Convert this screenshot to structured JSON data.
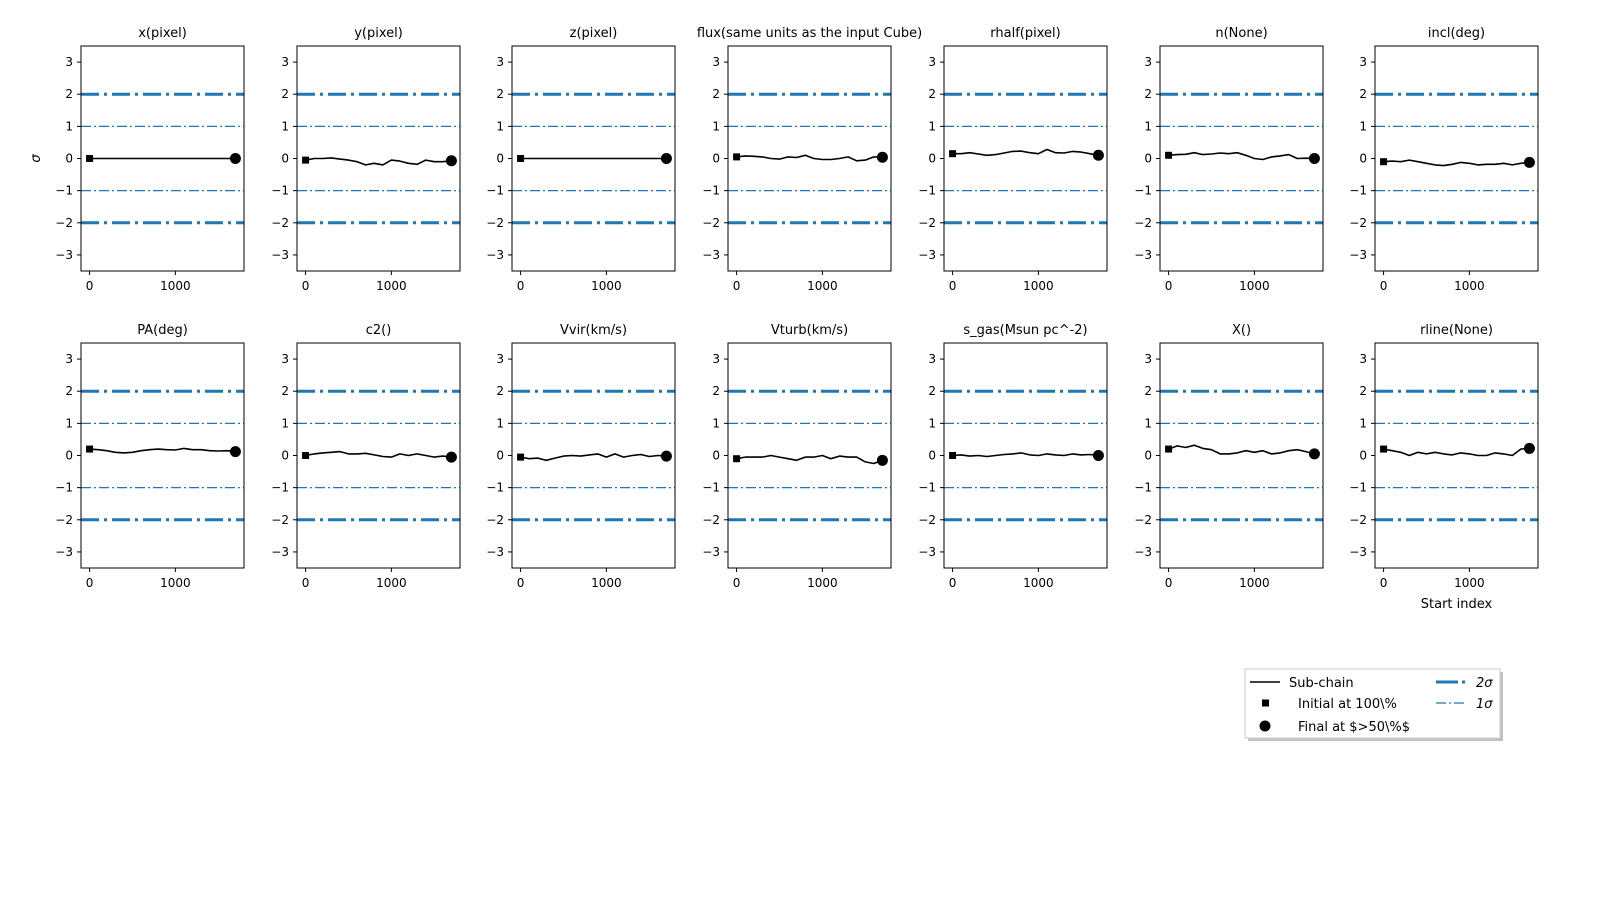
{
  "chart_data": {
    "type": "line",
    "ylabel": "σ",
    "xlabel": "Start index",
    "xlim": [
      -100,
      1800
    ],
    "ylim": [
      -3.5,
      3.5
    ],
    "xticks": [
      0,
      1000
    ],
    "xtick_labels": [
      "0",
      "1000"
    ],
    "yticks": [
      -3,
      -2,
      -1,
      0,
      1,
      2,
      3
    ],
    "ytick_labels": [
      "−3",
      "−2",
      "−1",
      "0",
      "1",
      "2",
      "3"
    ],
    "grid": false,
    "legend_position": "lower-right",
    "reference_lines": [
      {
        "y": 2,
        "label": "2σ",
        "style": "thick dash-dot"
      },
      {
        "y": -2,
        "label": "2σ",
        "style": "thick dash-dot"
      },
      {
        "y": 1,
        "label": "1σ",
        "style": "thin dash-dot"
      },
      {
        "y": -1,
        "label": "1σ",
        "style": "thin dash-dot"
      }
    ],
    "colors": {
      "chain": "#000000",
      "sigma": "#1f77b4"
    },
    "legend": [
      {
        "label": "Sub-chain",
        "marker": "line"
      },
      {
        "label": "Initial at 100\\%",
        "marker": "square"
      },
      {
        "label": "Final at $>50\\%$",
        "marker": "circle"
      },
      {
        "label": "2σ",
        "marker": "thick-dashdot"
      },
      {
        "label": "1σ",
        "marker": "thin-dashdot"
      }
    ],
    "panels": [
      {
        "title": "x(pixel)",
        "x": [
          0,
          1700
        ],
        "y": [
          0,
          0
        ],
        "initial": 0,
        "final": 0
      },
      {
        "title": "y(pixel)",
        "x": [
          0,
          100,
          200,
          300,
          400,
          500,
          600,
          700,
          800,
          900,
          1000,
          1100,
          1200,
          1300,
          1400,
          1500,
          1600,
          1700
        ],
        "y": [
          -0.05,
          0.0,
          0.0,
          0.02,
          -0.02,
          -0.05,
          -0.1,
          -0.2,
          -0.15,
          -0.2,
          -0.05,
          -0.08,
          -0.15,
          -0.18,
          -0.05,
          -0.1,
          -0.1,
          -0.07
        ],
        "initial": -0.05,
        "final": -0.07
      },
      {
        "title": "z(pixel)",
        "x": [
          0,
          1700
        ],
        "y": [
          0,
          0
        ],
        "initial": 0,
        "final": 0
      },
      {
        "title": "flux(same units as the input Cube)",
        "x": [
          0,
          100,
          200,
          300,
          400,
          500,
          600,
          700,
          800,
          900,
          1000,
          1100,
          1200,
          1300,
          1400,
          1500,
          1600,
          1700
        ],
        "y": [
          0.05,
          0.08,
          0.07,
          0.05,
          0.0,
          -0.02,
          0.05,
          0.03,
          0.1,
          0.0,
          -0.03,
          -0.03,
          0.0,
          0.05,
          -0.07,
          -0.05,
          0.05,
          0.04
        ],
        "initial": 0.05,
        "final": 0.04
      },
      {
        "title": "rhalf(pixel)",
        "x": [
          0,
          100,
          200,
          300,
          400,
          500,
          600,
          700,
          800,
          900,
          1000,
          1100,
          1200,
          1300,
          1400,
          1500,
          1600,
          1700
        ],
        "y": [
          0.15,
          0.15,
          0.18,
          0.14,
          0.1,
          0.12,
          0.17,
          0.22,
          0.23,
          0.18,
          0.15,
          0.28,
          0.18,
          0.17,
          0.22,
          0.2,
          0.15,
          0.1
        ],
        "initial": 0.15,
        "final": 0.1
      },
      {
        "title": "n(None)",
        "x": [
          0,
          100,
          200,
          300,
          400,
          500,
          600,
          700,
          800,
          900,
          1000,
          1100,
          1200,
          1300,
          1400,
          1500,
          1600,
          1700
        ],
        "y": [
          0.1,
          0.12,
          0.13,
          0.18,
          0.12,
          0.14,
          0.17,
          0.15,
          0.18,
          0.1,
          0.0,
          -0.03,
          0.05,
          0.08,
          0.12,
          0.0,
          0.01,
          0.0
        ],
        "initial": 0.1,
        "final": 0.0
      },
      {
        "title": "incl(deg)",
        "x": [
          0,
          100,
          200,
          300,
          400,
          500,
          600,
          700,
          800,
          900,
          1000,
          1100,
          1200,
          1300,
          1400,
          1500,
          1600,
          1700
        ],
        "y": [
          -0.1,
          -0.08,
          -0.1,
          -0.05,
          -0.1,
          -0.15,
          -0.2,
          -0.22,
          -0.18,
          -0.12,
          -0.15,
          -0.2,
          -0.18,
          -0.18,
          -0.15,
          -0.2,
          -0.15,
          -0.12
        ],
        "initial": -0.1,
        "final": -0.12
      },
      {
        "title": "PA(deg)",
        "x": [
          0,
          100,
          200,
          300,
          400,
          500,
          600,
          700,
          800,
          900,
          1000,
          1100,
          1200,
          1300,
          1400,
          1500,
          1600,
          1700
        ],
        "y": [
          0.2,
          0.18,
          0.15,
          0.1,
          0.08,
          0.1,
          0.15,
          0.18,
          0.2,
          0.18,
          0.17,
          0.22,
          0.18,
          0.18,
          0.15,
          0.14,
          0.15,
          0.12
        ],
        "initial": 0.2,
        "final": 0.12
      },
      {
        "title": "c2()",
        "x": [
          0,
          100,
          200,
          300,
          400,
          500,
          600,
          700,
          800,
          900,
          1000,
          1100,
          1200,
          1300,
          1400,
          1500,
          1600,
          1700
        ],
        "y": [
          0.0,
          0.05,
          0.08,
          0.1,
          0.12,
          0.05,
          0.05,
          0.07,
          0.02,
          -0.03,
          -0.05,
          0.05,
          0.0,
          0.05,
          0.0,
          -0.05,
          -0.02,
          -0.05
        ],
        "initial": 0.0,
        "final": -0.05
      },
      {
        "title": "Vvir(km/s)",
        "x": [
          0,
          100,
          200,
          300,
          400,
          500,
          600,
          700,
          800,
          900,
          1000,
          1100,
          1200,
          1300,
          1400,
          1500,
          1600,
          1700
        ],
        "y": [
          -0.05,
          -0.1,
          -0.08,
          -0.15,
          -0.08,
          -0.02,
          0.0,
          -0.02,
          0.02,
          0.05,
          -0.05,
          0.05,
          -0.05,
          0.0,
          0.03,
          -0.03,
          0.0,
          -0.02
        ],
        "initial": -0.05,
        "final": -0.02
      },
      {
        "title": "Vturb(km/s)",
        "x": [
          0,
          100,
          200,
          300,
          400,
          500,
          600,
          700,
          800,
          900,
          1000,
          1100,
          1200,
          1300,
          1400,
          1500,
          1600,
          1700
        ],
        "y": [
          -0.1,
          -0.05,
          -0.05,
          -0.05,
          0.0,
          -0.05,
          -0.1,
          -0.15,
          -0.05,
          -0.05,
          0.0,
          -0.1,
          -0.02,
          -0.05,
          -0.05,
          -0.2,
          -0.25,
          -0.15
        ],
        "initial": -0.1,
        "final": -0.15
      },
      {
        "title": "s_gas(Msun pc^-2)",
        "x": [
          0,
          100,
          200,
          300,
          400,
          500,
          600,
          700,
          800,
          900,
          1000,
          1100,
          1200,
          1300,
          1400,
          1500,
          1600,
          1700
        ],
        "y": [
          0.0,
          0.02,
          -0.02,
          0.0,
          -0.03,
          0.0,
          0.03,
          0.05,
          0.08,
          0.02,
          0.0,
          0.05,
          0.02,
          0.0,
          0.05,
          0.02,
          0.03,
          0.0
        ],
        "initial": 0.0,
        "final": 0.0
      },
      {
        "title": "X()",
        "x": [
          0,
          100,
          200,
          300,
          400,
          500,
          600,
          700,
          800,
          900,
          1000,
          1100,
          1200,
          1300,
          1400,
          1500,
          1600,
          1700
        ],
        "y": [
          0.2,
          0.3,
          0.25,
          0.32,
          0.22,
          0.18,
          0.05,
          0.05,
          0.08,
          0.15,
          0.1,
          0.15,
          0.05,
          0.08,
          0.15,
          0.18,
          0.12,
          0.05
        ],
        "initial": 0.2,
        "final": 0.05
      },
      {
        "title": "rline(None)",
        "x": [
          0,
          100,
          200,
          300,
          400,
          500,
          600,
          700,
          800,
          900,
          1000,
          1100,
          1200,
          1300,
          1400,
          1500,
          1600,
          1700
        ],
        "y": [
          0.2,
          0.15,
          0.1,
          0.0,
          0.1,
          0.05,
          0.1,
          0.05,
          0.02,
          0.08,
          0.05,
          0.0,
          0.0,
          0.08,
          0.05,
          0.0,
          0.2,
          0.22
        ],
        "initial": 0.2,
        "final": 0.22
      }
    ]
  }
}
